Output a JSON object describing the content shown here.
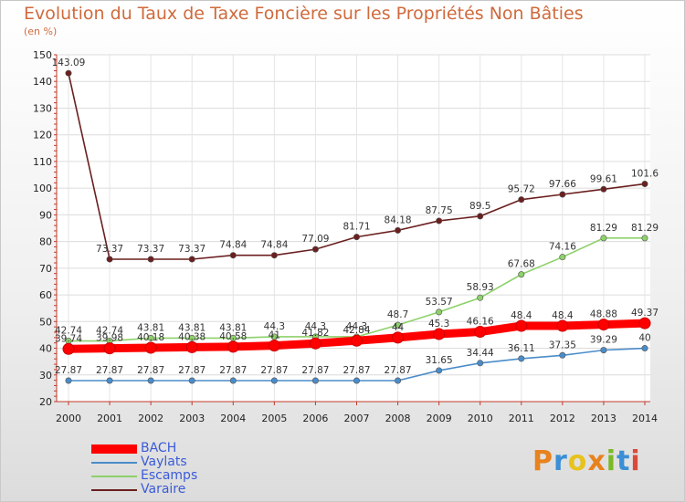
{
  "header": {
    "title": "Evolution du Taux de Taxe Foncière sur les Propriétés Non Bâties",
    "subtitle": "(en %)"
  },
  "logo": {
    "text": "Proxiti",
    "colors": [
      "#e8821e",
      "#3a8fd6",
      "#e8c21e",
      "#e8821e",
      "#7ab928",
      "#3a8fd6",
      "#d94a3a"
    ]
  },
  "chart_data": {
    "type": "line",
    "title": "Evolution du Taux de Taxe Foncière sur les Propriétés Non Bâties",
    "ylabel": "(en %)",
    "xlabel": "",
    "ylim": [
      20,
      150
    ],
    "yticks": [
      20,
      30,
      40,
      50,
      60,
      70,
      80,
      90,
      100,
      110,
      120,
      130,
      140,
      150
    ],
    "x": [
      "2000",
      "2001",
      "2002",
      "2003",
      "2004",
      "2005",
      "2006",
      "2007",
      "2008",
      "2009",
      "2010",
      "2011",
      "2012",
      "2013",
      "2014"
    ],
    "grid": true,
    "legend_position": "bottom-left",
    "series": [
      {
        "name": "Varaire",
        "color": "#6b1f1f",
        "values": [
          143.09,
          73.37,
          73.37,
          73.37,
          74.84,
          74.84,
          77.09,
          81.71,
          84.18,
          87.75,
          89.5,
          95.72,
          97.66,
          99.61,
          101.6
        ],
        "labels": [
          "143.09",
          "73.37",
          "73.37",
          "73.37",
          "74.84",
          "74.84",
          "77.09",
          "81.71",
          "84.18",
          "87.75",
          "89.5",
          "95.72",
          "97.66",
          "99.61",
          "101.6"
        ]
      },
      {
        "name": "Escamps",
        "color": "#8ed16a",
        "values": [
          42.74,
          42.74,
          43.81,
          43.81,
          43.81,
          44.3,
          44.3,
          44.3,
          48.7,
          53.57,
          58.93,
          67.68,
          74.16,
          81.29,
          81.29
        ],
        "labels": [
          "42.74",
          "42.74",
          "43.81",
          "43.81",
          "43.81",
          "44.3",
          "44.3",
          "44.3",
          "48.7",
          "53.57",
          "58.93",
          "67.68",
          "74.16",
          "81.29",
          "81.29"
        ]
      },
      {
        "name": "BACH",
        "color": "#ff0000",
        "values": [
          39.74,
          39.98,
          40.18,
          40.38,
          40.58,
          41,
          41.82,
          42.84,
          44,
          45.3,
          46.16,
          48.4,
          48.4,
          48.88,
          49.37
        ],
        "labels": [
          "39.74",
          "39.98",
          "40.18",
          "40.38",
          "40.58",
          "41",
          "41.82",
          "42.84",
          "44",
          "45.3",
          "46.16",
          "48.4",
          "48.4",
          "48.88",
          "49.37"
        ]
      },
      {
        "name": "Vaylats",
        "color": "#4a8cc9",
        "values": [
          27.87,
          27.87,
          27.87,
          27.87,
          27.87,
          27.87,
          27.87,
          27.87,
          27.87,
          31.65,
          34.44,
          36.11,
          37.35,
          39.29,
          40
        ],
        "labels": [
          "27.87",
          "27.87",
          "27.87",
          "27.87",
          "27.87",
          "27.87",
          "27.87",
          "27.87",
          "27.87",
          "31.65",
          "34.44",
          "36.11",
          "37.35",
          "39.29",
          "40"
        ]
      }
    ],
    "legend": [
      "BACH",
      "Vaylats",
      "Escamps",
      "Varaire"
    ]
  }
}
